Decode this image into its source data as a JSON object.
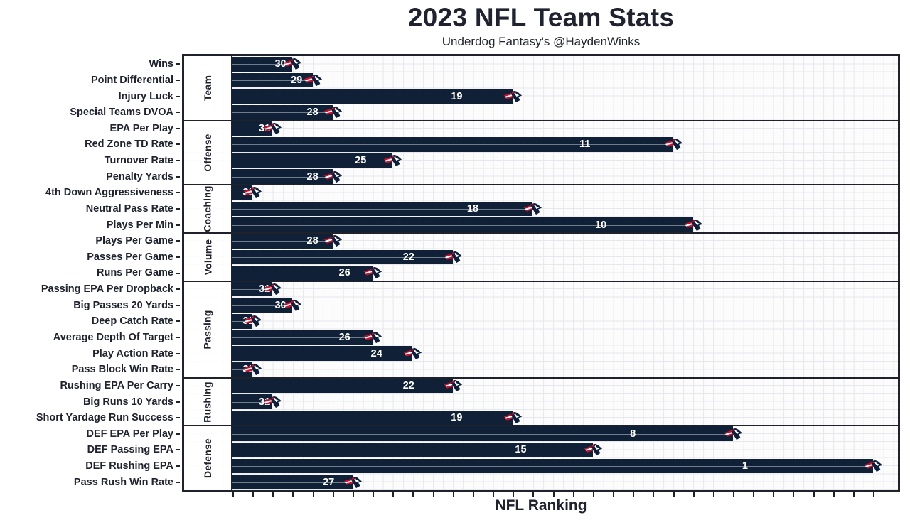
{
  "header": {
    "title": "2023 NFL Team Stats",
    "subtitle": "Underdog Fantasy's @HaydenWinks"
  },
  "chart_data": {
    "type": "bar",
    "orientation": "horizontal",
    "title": "2023 NFL Team Stats",
    "subtitle": "Underdog Fantasy's @HaydenWinks",
    "xlabel": "NFL Ranking",
    "team": "New England Patriots",
    "value_semantics": "bar length = 33 minus NFL rank; label on bar shows the rank (1 = best of 32 teams)",
    "x_axis": {
      "min": 0,
      "max": 33,
      "tick_step": 1,
      "tick_labels_visible": false
    },
    "grid": "fine light-gray minor grid, on",
    "legend": "none",
    "colors": {
      "bar": "#102137",
      "bar_value_label": "#ffffff",
      "accent_red": "#c8102e",
      "text": "#20232f",
      "grid_line": "#e7e8ec",
      "border": "#1f222b"
    },
    "groups": [
      {
        "label": "Team",
        "rows": [
          {
            "stat": "Wins",
            "rank": 30
          },
          {
            "stat": "Point Differential",
            "rank": 29
          },
          {
            "stat": "Injury Luck",
            "rank": 19
          },
          {
            "stat": "Special Teams DVOA",
            "rank": 28
          }
        ]
      },
      {
        "label": "Offense",
        "rows": [
          {
            "stat": "EPA Per Play",
            "rank": 31
          },
          {
            "stat": "Red Zone TD Rate",
            "rank": 11
          },
          {
            "stat": "Turnover Rate",
            "rank": 25
          },
          {
            "stat": "Penalty Yards",
            "rank": 28
          }
        ]
      },
      {
        "label": "Coaching",
        "rows": [
          {
            "stat": "4th Down Aggressiveness",
            "rank": 32
          },
          {
            "stat": "Neutral Pass Rate",
            "rank": 18
          },
          {
            "stat": "Plays Per Min",
            "rank": 10
          }
        ]
      },
      {
        "label": "Volume",
        "rows": [
          {
            "stat": "Plays Per Game",
            "rank": 28
          },
          {
            "stat": "Passes Per Game",
            "rank": 22
          },
          {
            "stat": "Runs Per Game",
            "rank": 26
          }
        ]
      },
      {
        "label": "Passing",
        "rows": [
          {
            "stat": "Passing EPA Per Dropback",
            "rank": 31
          },
          {
            "stat": "Big Passes 20 Yards",
            "rank": 30
          },
          {
            "stat": "Deep Catch Rate",
            "rank": 32
          },
          {
            "stat": "Average Depth Of Target",
            "rank": 26
          },
          {
            "stat": "Play Action Rate",
            "rank": 24
          },
          {
            "stat": "Pass Block Win Rate",
            "rank": 32
          }
        ]
      },
      {
        "label": "Rushing",
        "rows": [
          {
            "stat": "Rushing EPA Per Carry",
            "rank": 22
          },
          {
            "stat": "Big Runs 10 Yards",
            "rank": 31
          },
          {
            "stat": "Short Yardage Run Success",
            "rank": 19
          }
        ]
      },
      {
        "label": "Defense",
        "rows": [
          {
            "stat": "DEF EPA Per Play",
            "rank": 8
          },
          {
            "stat": "DEF Passing EPA",
            "rank": 15
          },
          {
            "stat": "DEF Rushing EPA",
            "rank": 1
          },
          {
            "stat": "Pass Rush Win Rate",
            "rank": 27
          }
        ]
      }
    ]
  }
}
